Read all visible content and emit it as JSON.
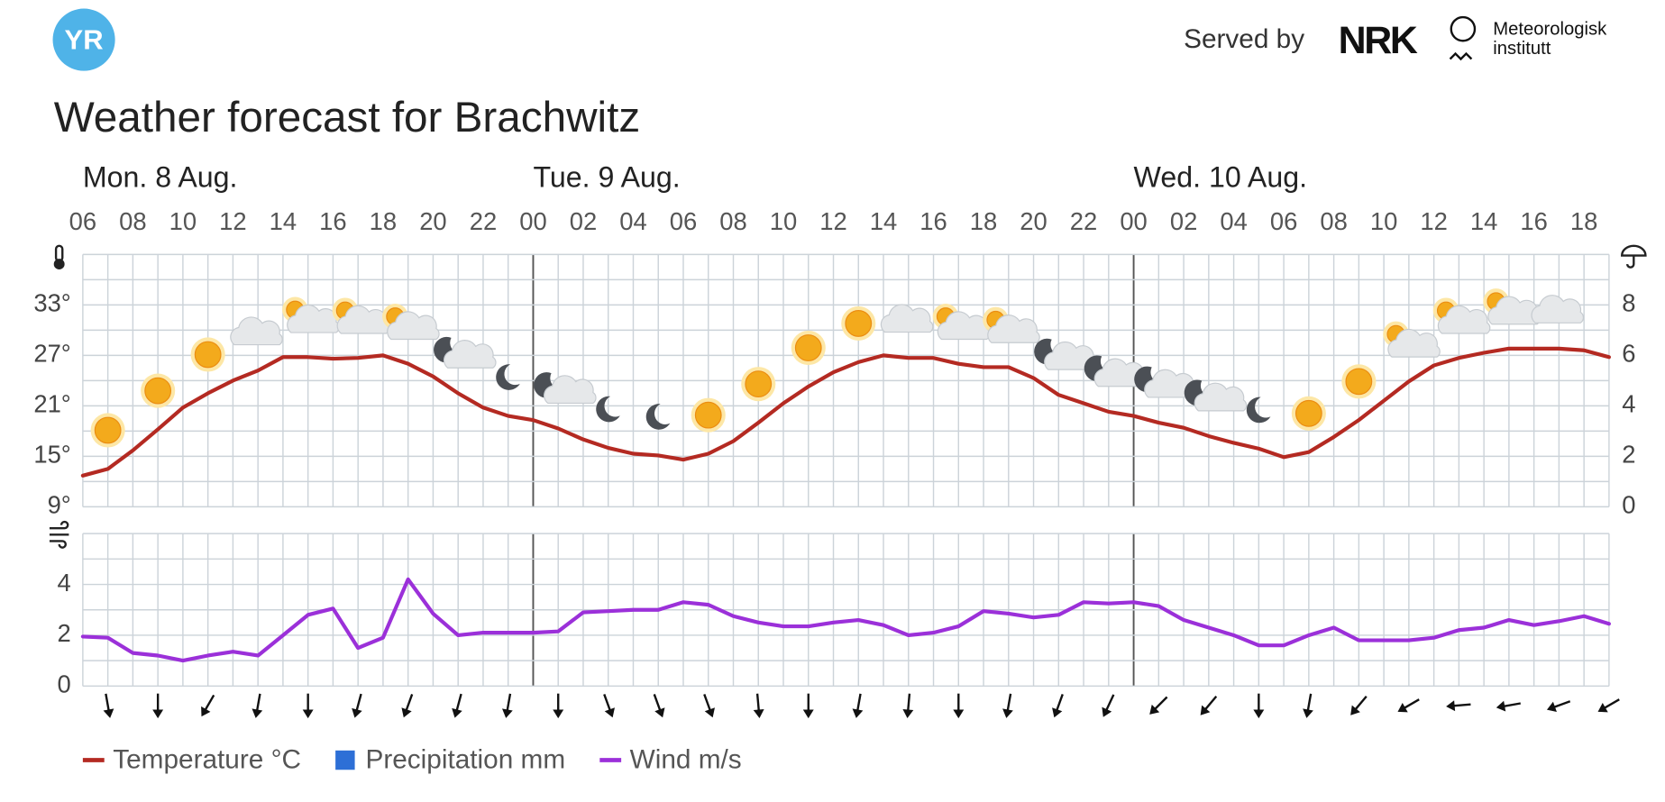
{
  "header": {
    "logo": "YR",
    "served_by": "Served by",
    "nrk": "NRK",
    "met": [
      "Meteorologisk",
      "institutt"
    ]
  },
  "chart_data": [
    {
      "type": "line",
      "title": "Weather forecast for Brachwitz",
      "days": [
        "Mon. 8 Aug.",
        "Tue. 9 Aug.",
        "Wed. 10 Aug."
      ],
      "categories": [
        "06",
        null,
        "08",
        null,
        "10",
        null,
        "12",
        null,
        "14",
        null,
        "16",
        null,
        "18",
        null,
        "20",
        null,
        "22",
        null,
        "00",
        null,
        "02",
        null,
        "04",
        null,
        "06",
        null,
        "08",
        null,
        "10",
        null,
        "12",
        null,
        "14",
        null,
        "16",
        null,
        "18",
        null,
        "20",
        null,
        "22",
        null,
        "00",
        null,
        "02",
        null,
        "04",
        null,
        "06",
        null,
        "08",
        null,
        "10",
        null,
        "12",
        null,
        "14",
        null,
        "16",
        null,
        "18",
        null
      ],
      "ylim": [
        9,
        39
      ],
      "yticks": [
        {
          "value": 9,
          "label": "9°"
        },
        {
          "value": 15,
          "label": "15°"
        },
        {
          "value": 21,
          "label": "21°"
        },
        {
          "value": 27,
          "label": "27°"
        },
        {
          "value": 33,
          "label": "33°"
        }
      ],
      "minor_yticks": [
        12,
        18,
        24,
        30,
        36,
        39
      ],
      "y2lim": [
        0,
        10
      ],
      "y2ticks": [
        0,
        2,
        4,
        6,
        8
      ],
      "grid": true,
      "series": [
        {
          "name": "Temperature °C",
          "color": "#b42a22",
          "values": [
            12.7,
            13.5,
            15.7,
            18.2,
            20.8,
            22.5,
            24.0,
            25.2,
            26.8,
            26.8,
            26.6,
            26.7,
            27.0,
            26.0,
            24.5,
            22.5,
            20.8,
            19.8,
            19.3,
            18.3,
            17.0,
            16.0,
            15.3,
            15.1,
            14.6,
            15.3,
            16.8,
            19.0,
            21.3,
            23.3,
            25.0,
            26.2,
            27.0,
            26.7,
            26.7,
            26.0,
            25.6,
            25.6,
            24.3,
            22.3,
            21.3,
            20.3,
            19.8,
            19.0,
            18.4,
            17.4,
            16.6,
            15.9,
            14.9,
            15.5,
            17.3,
            19.3,
            21.6,
            23.9,
            25.8,
            26.7,
            27.3,
            27.8,
            27.8,
            27.8,
            27.6,
            26.8
          ]
        },
        {
          "name": "Precipitation mm",
          "color": "#2d6fd6",
          "type": "bar",
          "axis": "y2",
          "values": [
            0,
            0,
            0,
            0,
            0,
            0,
            0,
            0,
            0,
            0,
            0,
            0,
            0,
            0,
            0,
            0,
            0,
            0,
            0,
            0,
            0,
            0,
            0,
            0,
            0,
            0,
            0,
            0,
            0,
            0,
            0,
            0,
            0,
            0,
            0,
            0,
            0,
            0,
            0,
            0,
            0,
            0,
            0,
            0,
            0,
            0,
            0,
            0,
            0,
            0,
            0,
            0,
            0,
            0,
            0,
            0,
            0,
            0,
            0,
            0,
            0,
            0
          ]
        }
      ]
    },
    {
      "type": "line",
      "ylim": [
        0,
        6
      ],
      "yticks": [
        0,
        2,
        4
      ],
      "minor_yticks": [
        1,
        3,
        5,
        6
      ],
      "grid": true,
      "series": [
        {
          "name": "Wind m/s",
          "color": "#9b30d9",
          "values": [
            1.95,
            1.9,
            1.3,
            1.2,
            1.0,
            1.2,
            1.35,
            1.2,
            2.0,
            2.8,
            3.05,
            1.5,
            1.9,
            4.2,
            2.85,
            2.0,
            2.1,
            2.1,
            2.1,
            2.15,
            2.9,
            2.95,
            3.0,
            3.0,
            3.3,
            3.2,
            2.75,
            2.5,
            2.35,
            2.35,
            2.5,
            2.6,
            2.4,
            2.0,
            2.1,
            2.35,
            2.95,
            2.85,
            2.7,
            2.8,
            3.3,
            3.25,
            3.3,
            3.15,
            2.6,
            2.3,
            2.0,
            1.6,
            1.6,
            2.0,
            2.3,
            1.8,
            1.8,
            1.8,
            1.9,
            2.2,
            2.3,
            2.6,
            2.4,
            2.55,
            2.75,
            2.45
          ]
        }
      ],
      "wind_directions": [
        null,
        350,
        null,
        0,
        null,
        30,
        null,
        10,
        null,
        0,
        null,
        15,
        null,
        20,
        null,
        15,
        null,
        10,
        null,
        0,
        null,
        340,
        null,
        340,
        null,
        340,
        null,
        355,
        null,
        0,
        null,
        10,
        null,
        5,
        null,
        0,
        null,
        10,
        null,
        20,
        null,
        25,
        null,
        45,
        null,
        40,
        null,
        0,
        null,
        10,
        null,
        40,
        null,
        60,
        null,
        85,
        null,
        80,
        null,
        70,
        null,
        60
      ]
    }
  ]
}
